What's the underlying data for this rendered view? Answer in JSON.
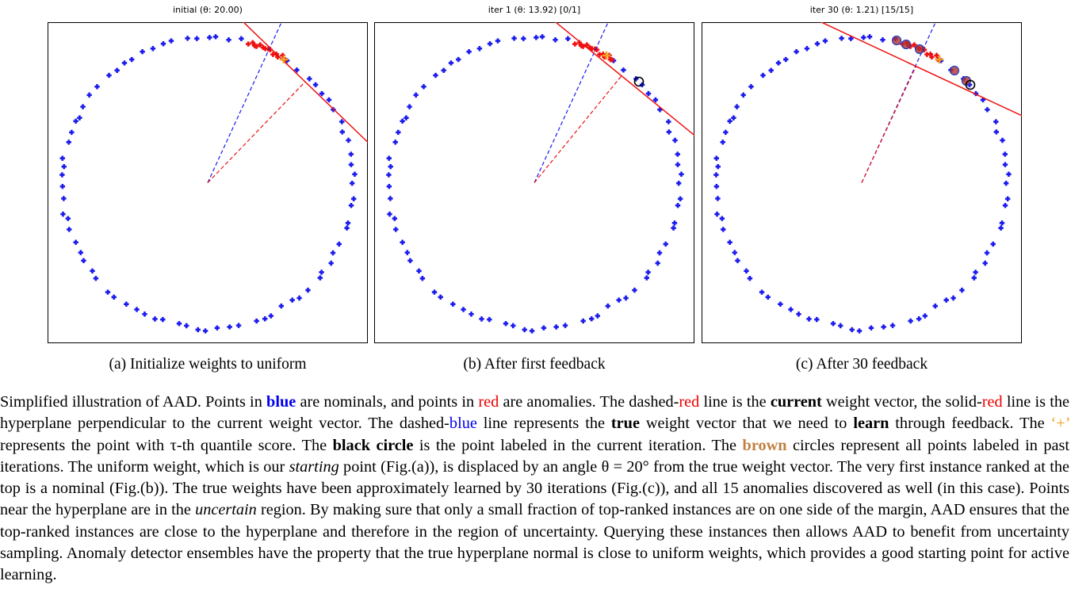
{
  "figure": {
    "panels": [
      {
        "title": "initial (θ: 20.00)",
        "caption": "(a) Initialize weights to uniform"
      },
      {
        "title": "iter 1 (θ: 13.92) [0/1]",
        "caption": "(b) After first feedback"
      },
      {
        "title": "iter 30 (θ: 1.21) [15/15]",
        "caption": "(c) After 30 feedback"
      }
    ]
  },
  "caption": {
    "parts": [
      "Simplified illustration of AAD. Points in ",
      "blue",
      " are nominals, and points in ",
      "red",
      " are anomalies. The dashed-",
      "red",
      " line is the ",
      "current",
      " weight vector, the solid-",
      "red",
      " line is the hyperplane perpendicular to the current weight vector. The dashed-",
      "blue",
      " line represents the ",
      "true",
      " weight vector that we need to ",
      "learn",
      " through feedback. The ",
      "‘+’",
      " represents the point with τ-th quantile score. The ",
      "black circle",
      " is the point labeled in the current iteration. The ",
      "brown",
      " circles represent all points labeled in past iterations. The uniform weight, which is our ",
      "starting",
      " point (Fig.(a)), is displaced by an angle θ = 20° from the true weight vector. The very first instance ranked at the top is a nominal (Fig.(b)). The true weights have been approximately learned by 30 iterations (Fig.(c)), and all 15 anomalies discovered as well (in this case). Points near the hyperplane are in the ",
      "uncertain",
      " region. By making sure that only a small fraction of top-ranked instances are on one side of the margin, AAD ensures that the top-ranked instances are close to the hyperplane and therefore in the region of uncertainty. Querying these instances then allows AAD to benefit from uncertainty sampling. Anomaly detector ensembles have the property that the true hyperplane normal is close to uniform weights, which provides a good starting point for active learning."
    ]
  }
}
